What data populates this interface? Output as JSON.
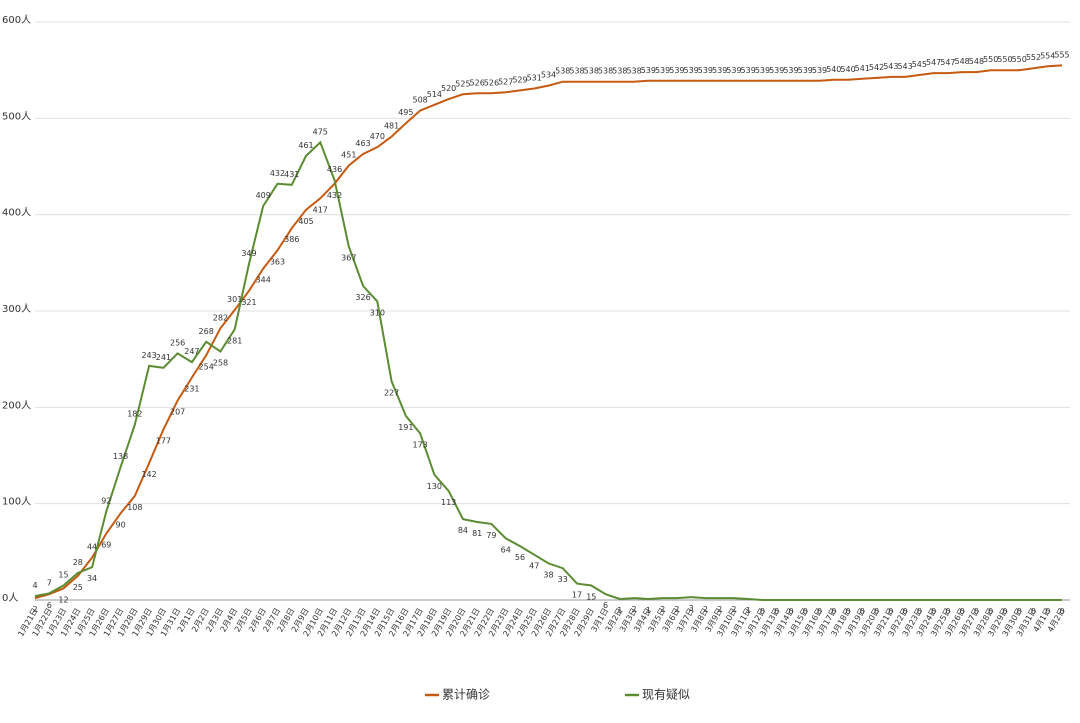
{
  "chart_data": {
    "type": "line",
    "categories": [
      "1月21日",
      "1月22日",
      "1月23日",
      "1月24日",
      "1月25日",
      "1月26日",
      "1月27日",
      "1月28日",
      "1月29日",
      "1月30日",
      "1月31日",
      "2月1日",
      "2月2日",
      "2月3日",
      "2月4日",
      "2月5日",
      "2月6日",
      "2月7日",
      "2月8日",
      "2月9日",
      "2月10日",
      "2月11日",
      "2月12日",
      "2月13日",
      "2月14日",
      "2月15日",
      "2月16日",
      "2月17日",
      "2月18日",
      "2月19日",
      "2月20日",
      "2月21日",
      "2月22日",
      "2月23日",
      "2月24日",
      "2月25日",
      "2月26日",
      "2月27日",
      "2月28日",
      "2月29日",
      "3月1日",
      "3月2日",
      "3月3日",
      "3月4日",
      "3月5日",
      "3月6日",
      "3月7日",
      "3月8日",
      "3月9日",
      "3月10日",
      "3月11日",
      "3月12日",
      "3月13日",
      "3月14日",
      "3月15日",
      "3月16日",
      "3月17日",
      "3月18日",
      "3月19日",
      "3月20日",
      "3月21日",
      "3月22日",
      "3月23日",
      "3月24日",
      "3月25日",
      "3月26日",
      "3月27日",
      "3月28日",
      "3月29日",
      "3月30日",
      "3月31日",
      "4月1日",
      "4月2日"
    ],
    "series": [
      {
        "name": "累计确诊",
        "color": "#c55a11",
        "values": [
          2,
          6,
          12,
          25,
          44,
          69,
          90,
          108,
          142,
          177,
          207,
          231,
          254,
          282,
          301,
          321,
          344,
          363,
          386,
          405,
          417,
          432,
          451,
          463,
          470,
          481,
          495,
          508,
          514,
          520,
          525,
          526,
          526,
          527,
          529,
          531,
          534,
          538,
          538,
          538,
          538,
          538,
          538,
          539,
          539,
          539,
          539,
          539,
          539,
          539,
          539,
          539,
          539,
          539,
          539,
          539,
          540,
          540,
          541,
          542,
          543,
          543,
          545,
          547,
          547,
          548,
          548,
          550,
          550,
          550,
          552,
          554,
          555
        ]
      },
      {
        "name": "现有疑似",
        "color": "#5b8c32",
        "values": [
          4,
          7,
          15,
          28,
          34,
          92,
          138,
          182,
          243,
          241,
          256,
          247,
          268,
          258,
          281,
          349,
          409,
          432,
          431,
          461,
          475,
          436,
          367,
          326,
          310,
          227,
          191,
          173,
          130,
          113,
          84,
          81,
          79,
          64,
          56,
          47,
          38,
          33,
          17,
          15,
          6,
          1,
          2,
          1,
          2,
          2,
          3,
          2,
          2,
          2,
          1,
          0,
          0,
          0,
          0,
          0,
          0,
          0,
          0,
          0,
          0,
          0,
          0,
          0,
          0,
          0,
          0,
          0,
          0,
          0,
          0,
          0,
          0
        ]
      }
    ],
    "ylim": [
      0,
      600
    ],
    "yticks": [
      {
        "value": 0,
        "label": "0人"
      },
      {
        "value": 100,
        "label": "100人"
      },
      {
        "value": 200,
        "label": "200人"
      },
      {
        "value": 300,
        "label": "300人"
      },
      {
        "value": 400,
        "label": "400人"
      },
      {
        "value": 500,
        "label": "500人"
      },
      {
        "value": 600,
        "label": "600人"
      }
    ],
    "grid": true,
    "legend": "bottom"
  }
}
